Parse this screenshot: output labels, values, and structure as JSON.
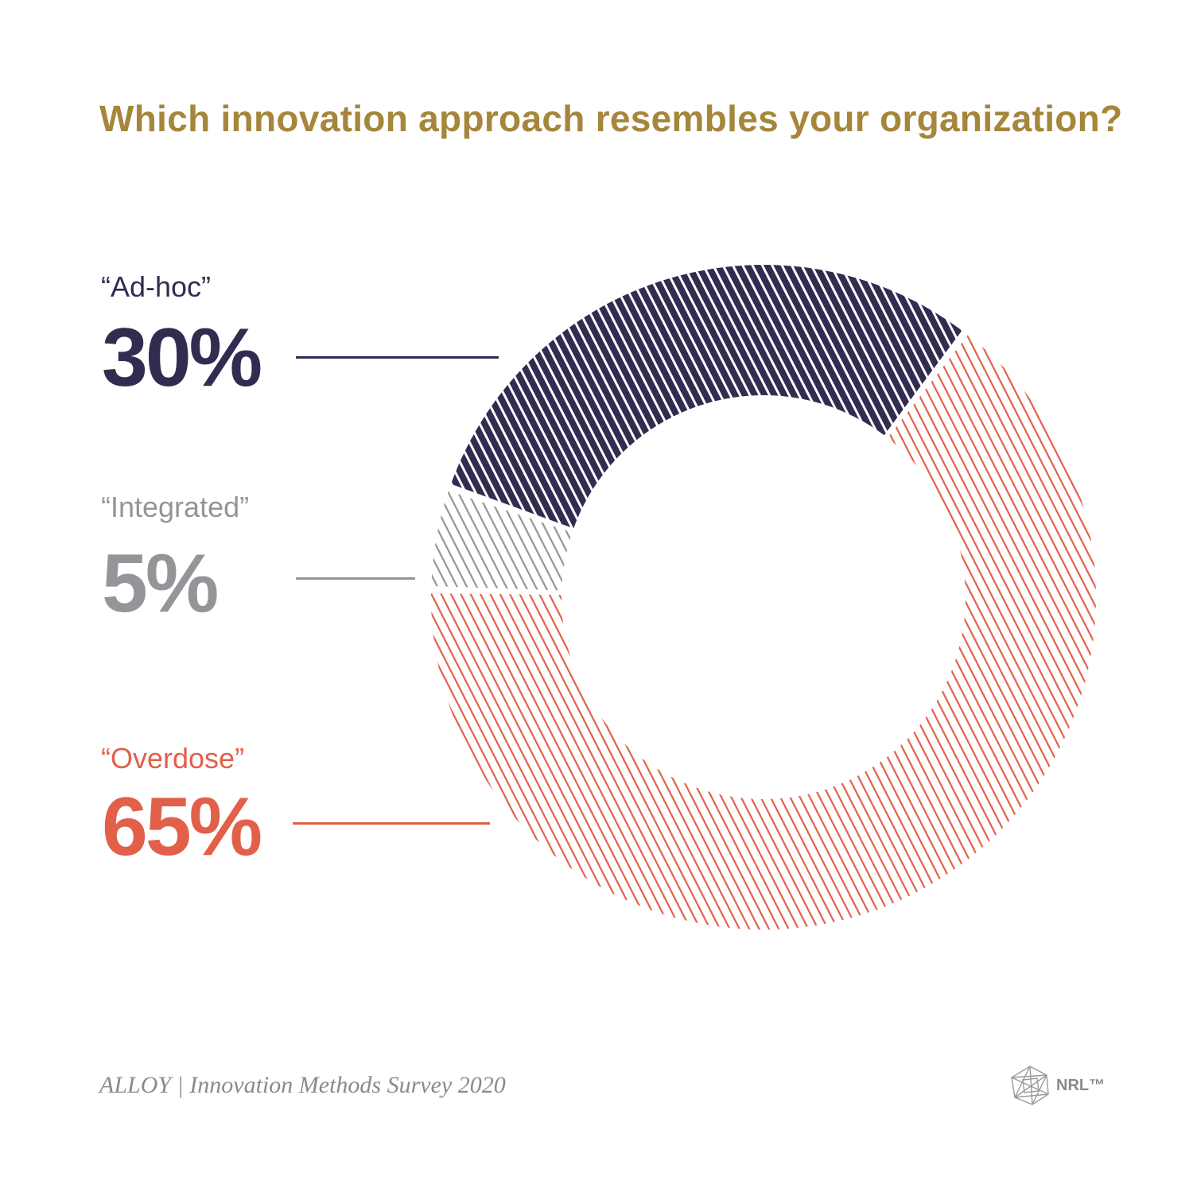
{
  "title": "Which innovation approach resembles your organization?",
  "chart_data": {
    "type": "pie",
    "variant": "donut",
    "title": "Which innovation approach resembles your organization?",
    "series": [
      {
        "name": "“Ad-hoc”",
        "value": 30,
        "value_label": "30%",
        "color": "#332c51"
      },
      {
        "name": "“Integrated”",
        "value": 5,
        "value_label": "5%",
        "color": "#939598"
      },
      {
        "name": "“Overdose”",
        "value": 65,
        "value_label": "65%",
        "color": "#e2604a"
      }
    ],
    "fill_pattern": "diagonal-stripes"
  },
  "footer": {
    "source": "ALLOY | Innovation Methods Survey 2020",
    "logo_text": "NRL™"
  }
}
